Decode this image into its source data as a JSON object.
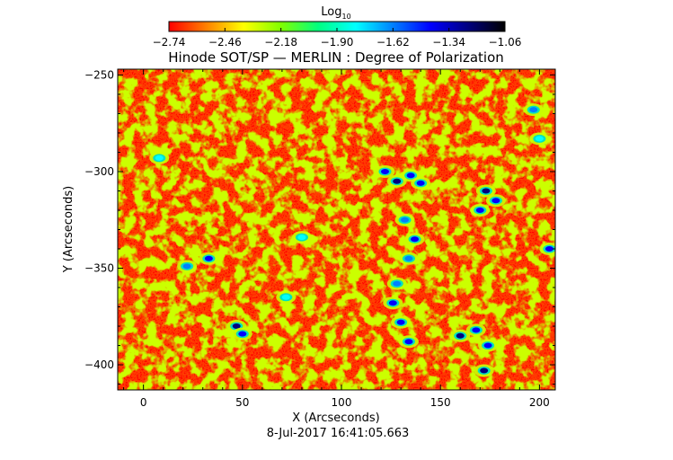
{
  "colorbar": {
    "label_main": "Log",
    "label_sub": "10",
    "ticks": [
      "-2.74",
      "-2.46",
      "-2.18",
      "-1.90",
      "-1.62",
      "-1.34",
      "-1.06"
    ],
    "range": [
      -2.74,
      -1.06
    ],
    "colormap": [
      "#ff0000",
      "#ff8000",
      "#ffff00",
      "#80ff00",
      "#00ff80",
      "#00ffff",
      "#0080ff",
      "#0000ff",
      "#000080",
      "#000000"
    ]
  },
  "footer": {
    "timestamp": "8-Jul-2017 16:41:05.663"
  },
  "chart_data": {
    "type": "heatmap",
    "title": "Hinode SOT/SP — MERLIN : Degree of Polarization",
    "xlabel": "X (Arcseconds)",
    "ylabel": "Y (Arcseconds)",
    "xlim": [
      -13,
      208
    ],
    "ylim": [
      -413,
      -247
    ],
    "xticks": [
      0,
      50,
      100,
      150,
      200
    ],
    "yticks": [
      -250,
      -300,
      -350,
      -400
    ],
    "xtick_labels": [
      "0",
      "50",
      "100",
      "150",
      "200"
    ],
    "ytick_labels": [
      "−250",
      "−300",
      "−350",
      "−400"
    ],
    "colorscale": "log10 degree of polarization",
    "background_value": -2.7,
    "features": [
      {
        "x": 122,
        "y": -300,
        "value": -1.4
      },
      {
        "x": 128,
        "y": -305,
        "value": -1.3
      },
      {
        "x": 135,
        "y": -302,
        "value": -1.5
      },
      {
        "x": 140,
        "y": -306,
        "value": -1.4
      },
      {
        "x": 132,
        "y": -325,
        "value": -1.6
      },
      {
        "x": 137,
        "y": -335,
        "value": -1.5
      },
      {
        "x": 134,
        "y": -345,
        "value": -1.6
      },
      {
        "x": 128,
        "y": -358,
        "value": -1.6
      },
      {
        "x": 126,
        "y": -368,
        "value": -1.5
      },
      {
        "x": 130,
        "y": -378,
        "value": -1.4
      },
      {
        "x": 134,
        "y": -388,
        "value": -1.5
      },
      {
        "x": 173,
        "y": -310,
        "value": -1.3
      },
      {
        "x": 178,
        "y": -315,
        "value": -1.4
      },
      {
        "x": 170,
        "y": -320,
        "value": -1.5
      },
      {
        "x": 160,
        "y": -385,
        "value": -1.3
      },
      {
        "x": 168,
        "y": -382,
        "value": -1.4
      },
      {
        "x": 174,
        "y": -390,
        "value": -1.5
      },
      {
        "x": 172,
        "y": -403,
        "value": -1.3
      },
      {
        "x": 47,
        "y": -380,
        "value": -1.3
      },
      {
        "x": 50,
        "y": -384,
        "value": -1.4
      },
      {
        "x": 33,
        "y": -345,
        "value": -1.4
      },
      {
        "x": 22,
        "y": -349,
        "value": -1.6
      },
      {
        "x": 205,
        "y": -340,
        "value": -1.5
      },
      {
        "x": 200,
        "y": -283,
        "value": -1.8
      },
      {
        "x": 197,
        "y": -268,
        "value": -1.6
      },
      {
        "x": 8,
        "y": -293,
        "value": -1.8
      },
      {
        "x": 80,
        "y": -334,
        "value": -1.9
      },
      {
        "x": 72,
        "y": -365,
        "value": -1.8
      }
    ]
  }
}
